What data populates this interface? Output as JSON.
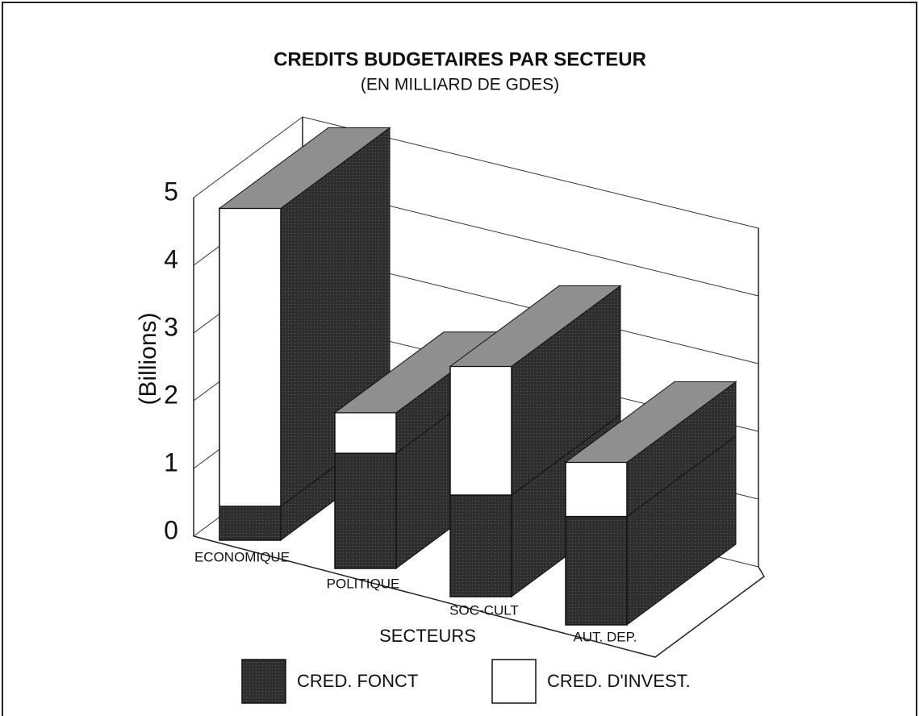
{
  "chart_data": {
    "type": "bar3d_stacked",
    "title": "CREDITS BUDGETAIRES PAR SECTEUR",
    "subtitle": "(EN MILLIARD DE GDES)",
    "y_label": "(Billions)",
    "x_label": "SECTEURS",
    "categories": [
      "ECONOMIQUE",
      "POLITIQUE",
      "SOC-CULT",
      "AUT. DEP."
    ],
    "series": [
      {
        "name": "CRED. FONCT",
        "color": "#4a4a4a",
        "values": [
          0.5,
          1.7,
          1.5,
          1.6
        ]
      },
      {
        "name": "CRED. D'INVEST.",
        "color": "#ffffff",
        "values": [
          4.4,
          0.6,
          1.9,
          0.8
        ]
      }
    ],
    "ylim": [
      0,
      5
    ],
    "yticks": [
      0,
      1,
      2,
      3,
      4,
      5
    ],
    "grid": true
  }
}
